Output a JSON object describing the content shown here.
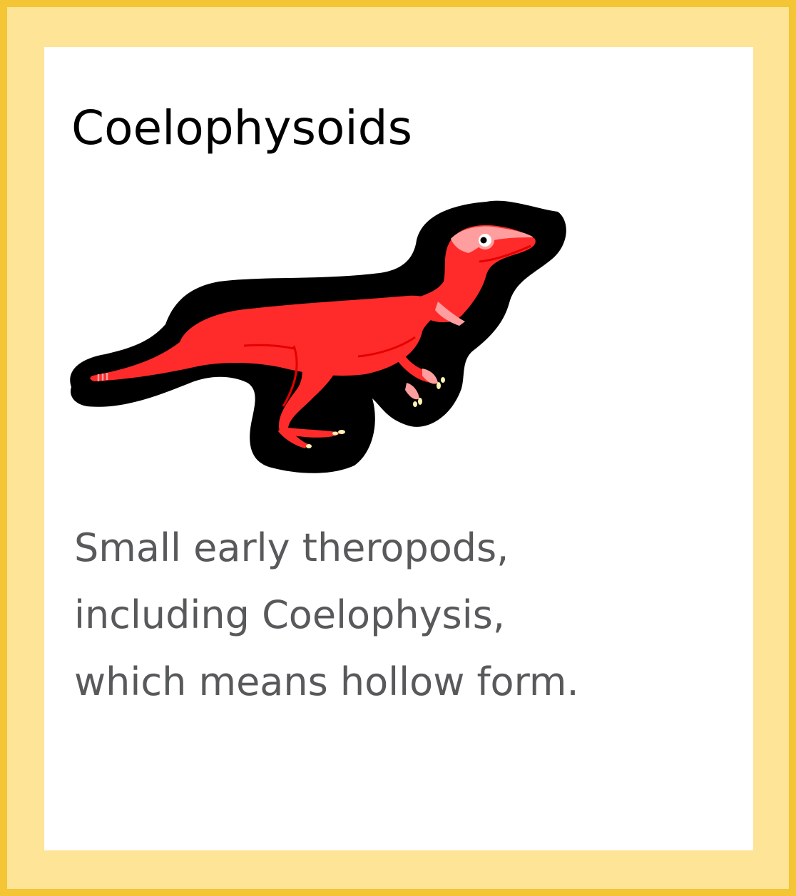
{
  "card": {
    "title": "Coelophysoids",
    "description_lines": [
      "Small early theropods,",
      "including Coelophysis,",
      "which means hollow form."
    ]
  },
  "illustration": {
    "icon": "coelophysis-dinosaur-icon"
  },
  "colors": {
    "frame_border": "#F4C535",
    "frame_fill": "#FEE497",
    "card_background": "#FFFFFF",
    "title_text": "#000000",
    "body_text": "#58595B",
    "dino_body": "#FF2B2B",
    "dino_detail": "#E60000",
    "dino_pink": "#FF9E9E",
    "dino_outline": "#000000",
    "claws": "#FFF2B3"
  }
}
